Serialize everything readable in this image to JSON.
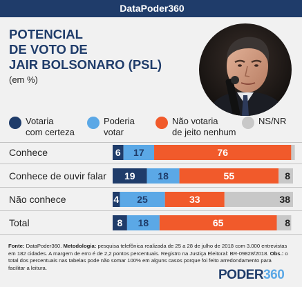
{
  "header": {
    "brand": "DataPoder360"
  },
  "title_lines": [
    "POTENCIAL",
    "DE VOTO DE",
    "JAIR BOLSONARO (PSL)"
  ],
  "subtitle": "(em %)",
  "legend": [
    {
      "label_lines": [
        "Votaria",
        "com certeza"
      ],
      "color": "#1f3c6a"
    },
    {
      "label_lines": [
        "Poderia",
        "votar"
      ],
      "color": "#5ba8e6"
    },
    {
      "label_lines": [
        "Não votaria",
        "de jeito nenhum"
      ],
      "color": "#f15a2b"
    },
    {
      "label_lines": [
        "NS/NR"
      ],
      "color": "#c8c8c8"
    }
  ],
  "chart_data": {
    "type": "bar",
    "orientation": "horizontal-stacked",
    "title": "POTENCIAL DE VOTO DE JAIR BOLSONARO (PSL)",
    "unit": "(em %)",
    "categories": [
      "Conhece",
      "Conhece de ouvir falar",
      "Não conhece",
      "Total"
    ],
    "series": [
      {
        "name": "Votaria com certeza",
        "color": "#1f3c6a",
        "values": [
          6,
          19,
          4,
          8
        ]
      },
      {
        "name": "Poderia votar",
        "color": "#5ba8e6",
        "values": [
          17,
          18,
          25,
          18
        ]
      },
      {
        "name": "Não votaria de jeito nenhum",
        "color": "#f15a2b",
        "values": [
          76,
          55,
          33,
          65
        ]
      },
      {
        "name": "NS/NR",
        "color": "#c8c8c8",
        "values": [
          2,
          8,
          38,
          8
        ]
      }
    ],
    "xlim": [
      0,
      100
    ],
    "legend": "top"
  },
  "footnote": {
    "fonte_label": "Fonte:",
    "fonte_text": " DataPoder360. ",
    "metodologia_label": "Metodologia:",
    "metodologia_text": " pesquisa telefônica realizada de 25 a 28 de julho de 2018 com 3.000 entrevistas em 182 cidades. A margem de erro é de 2,2 pontos percentuais. Registro na Justiça Eleitoral: BR-09828/2018. ",
    "obs_label": "Obs.:",
    "obs_text": " o total dos percentuais nas tabelas pode não somar 100% em alguns casos porque foi feito arredondamento para facilitar a leitura."
  },
  "logo": {
    "part1": "PODER",
    "part2": "360"
  }
}
